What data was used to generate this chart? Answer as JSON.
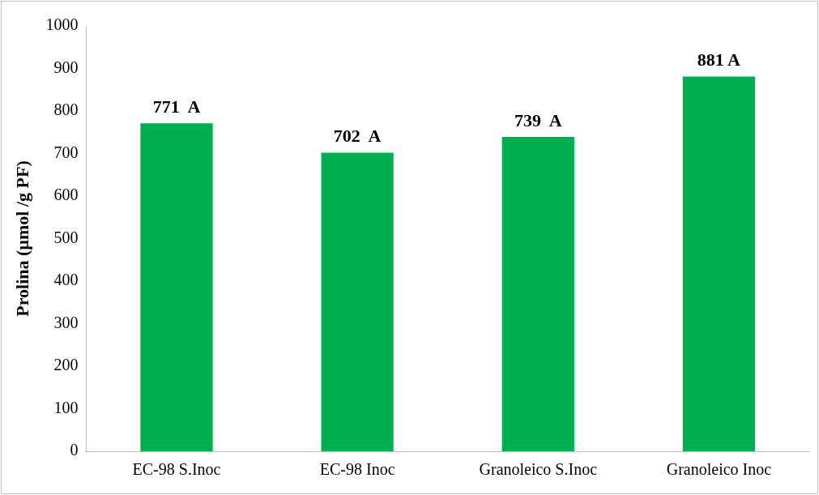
{
  "chart_data": {
    "type": "bar",
    "ylabel": "Prolina (µmol /g PF)",
    "categories": [
      "EC-98 S.Inoc",
      "EC-98 Inoc",
      "Granoleico S.Inoc",
      "Granoleico Inoc"
    ],
    "values": [
      771,
      702,
      739,
      881
    ],
    "value_labels": [
      "771  A",
      "702  A",
      "739  A",
      "881 A"
    ],
    "color": "#00b050",
    "ylim": [
      0,
      1000
    ],
    "yticks": [
      0,
      100,
      200,
      300,
      400,
      500,
      600,
      700,
      800,
      900,
      1000
    ],
    "grid": false,
    "legend": false
  }
}
